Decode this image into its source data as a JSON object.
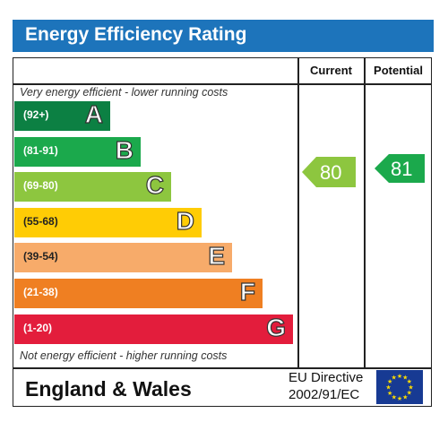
{
  "chart_data": {
    "type": "bar",
    "title": "Energy Efficiency Rating",
    "columns": {
      "current": "Current",
      "potential": "Potential"
    },
    "top_note": "Very energy efficient - lower running costs",
    "bottom_note": "Not energy efficient - higher running costs",
    "bands": [
      {
        "letter": "A",
        "range": "(92+)",
        "color": "#0c8043"
      },
      {
        "letter": "B",
        "range": "(81-91)",
        "color": "#1ba94c"
      },
      {
        "letter": "C",
        "range": "(69-80)",
        "color": "#8dc63f"
      },
      {
        "letter": "D",
        "range": "(55-68)",
        "color": "#ffcc05"
      },
      {
        "letter": "E",
        "range": "(39-54)",
        "color": "#f7ab6a"
      },
      {
        "letter": "F",
        "range": "(21-38)",
        "color": "#ef7f22"
      },
      {
        "letter": "G",
        "range": "(1-20)",
        "color": "#e31d3c"
      }
    ],
    "current": {
      "value": 80,
      "band": "C",
      "color": "#8dc63f"
    },
    "potential": {
      "value": 81,
      "band": "B",
      "color": "#1ba94c"
    }
  },
  "footer": {
    "country": "England & Wales",
    "directive_line1": "EU Directive",
    "directive_line2": "2002/91/EC"
  },
  "colors": {
    "header": "#1d74bb",
    "eu_flag": "#173a93",
    "eu_stars": "#ffdd00"
  }
}
